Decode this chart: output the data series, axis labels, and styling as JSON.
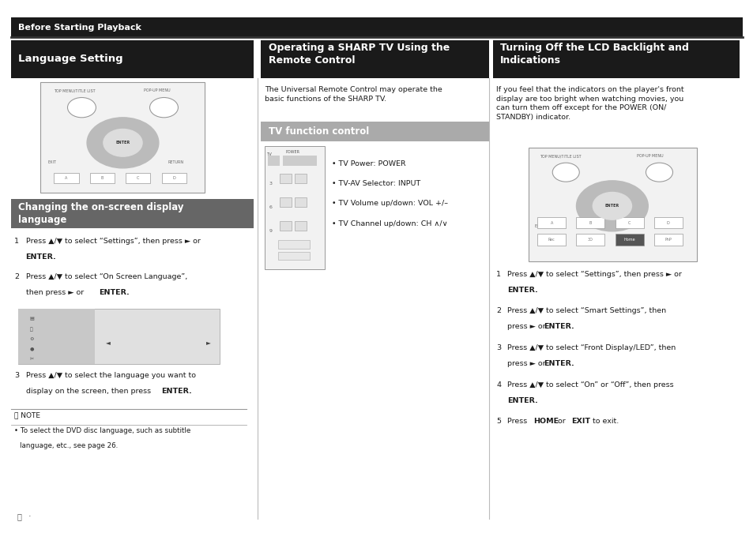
{
  "background_color": "#ffffff",
  "top_bar_color": "#1a1a1a",
  "top_bar_text": "Before Starting Playback",
  "header_bg": "#1a1a1a",
  "header_text_color": "#ffffff",
  "section1_header": "Language Setting",
  "section2_header": "Operating a SHARP TV Using the\nRemote Control",
  "section3_header": "Turning Off the LCD Backlight and\nIndications",
  "section1_subheader": "Changing the on-screen display\nlanguage",
  "section2_subheader": "TV function control",
  "section2_body": "The Universal Remote Control may operate the\nbasic functions of the SHARP TV.",
  "section2_bullets": [
    "• TV Power: POWER",
    "• TV-AV Selector: INPUT",
    "• TV Volume up/down: VOL +/–",
    "• TV Channel up/down: CH ∧/∨"
  ],
  "section3_body": "If you feel that the indicators on the player's front\ndisplay are too bright when watching movies, you\ncan turn them off except for the POWER (ON/\nSTANDBY) indicator.",
  "text_color": "#1a1a1a",
  "body_fontsize": 6.8,
  "header_fontsize": 9.5
}
